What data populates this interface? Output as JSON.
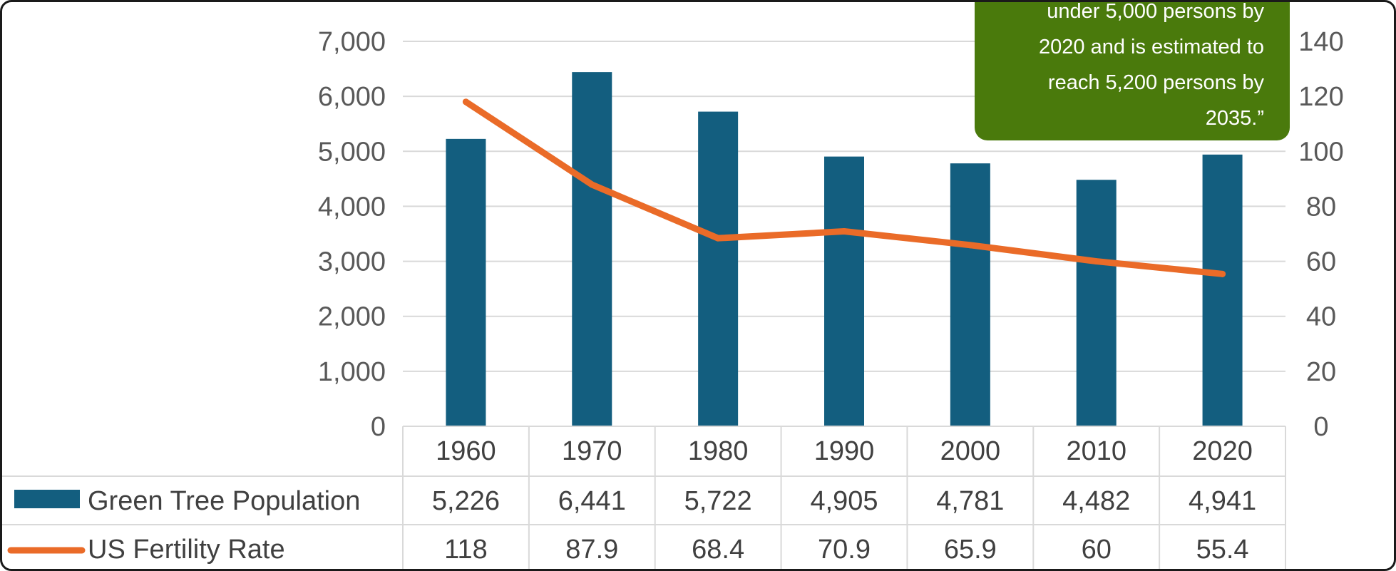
{
  "chart_data": {
    "type": "bar",
    "categories": [
      "1960",
      "1970",
      "1980",
      "1990",
      "2000",
      "2010",
      "2020"
    ],
    "series": [
      {
        "name": "Green Tree Population",
        "chart_type": "bar",
        "axis": "left",
        "values": [
          5226,
          6441,
          5722,
          4905,
          4781,
          4482,
          4941
        ],
        "value_labels": [
          "5,226",
          "6,441",
          "5,722",
          "4,905",
          "4,781",
          "4,482",
          "4,941"
        ],
        "color": "#135e7f"
      },
      {
        "name": "US Fertility Rate",
        "chart_type": "line",
        "axis": "right",
        "values": [
          118,
          87.9,
          68.4,
          70.9,
          65.9,
          60,
          55.4
        ],
        "value_labels": [
          "118",
          "87.9",
          "68.4",
          "70.9",
          "65.9",
          "60",
          "55.4"
        ],
        "color": "#ea6b28"
      }
    ],
    "ylim_left": [
      0,
      7000
    ],
    "yticks_left": [
      "0",
      "1,000",
      "2,000",
      "3,000",
      "4,000",
      "5,000",
      "6,000",
      "7,000"
    ],
    "ylim_right": [
      0,
      140
    ],
    "yticks_right": [
      "0",
      "20",
      "40",
      "60",
      "80",
      "100",
      "120",
      "140"
    ],
    "grid": true,
    "data_table": true,
    "annotation": {
      "lines": [
        "under 5,000 persons by",
        "2020 and is estimated to",
        "reach 5,200 persons by",
        "2035.”"
      ],
      "color": "#4a7a0c"
    }
  }
}
